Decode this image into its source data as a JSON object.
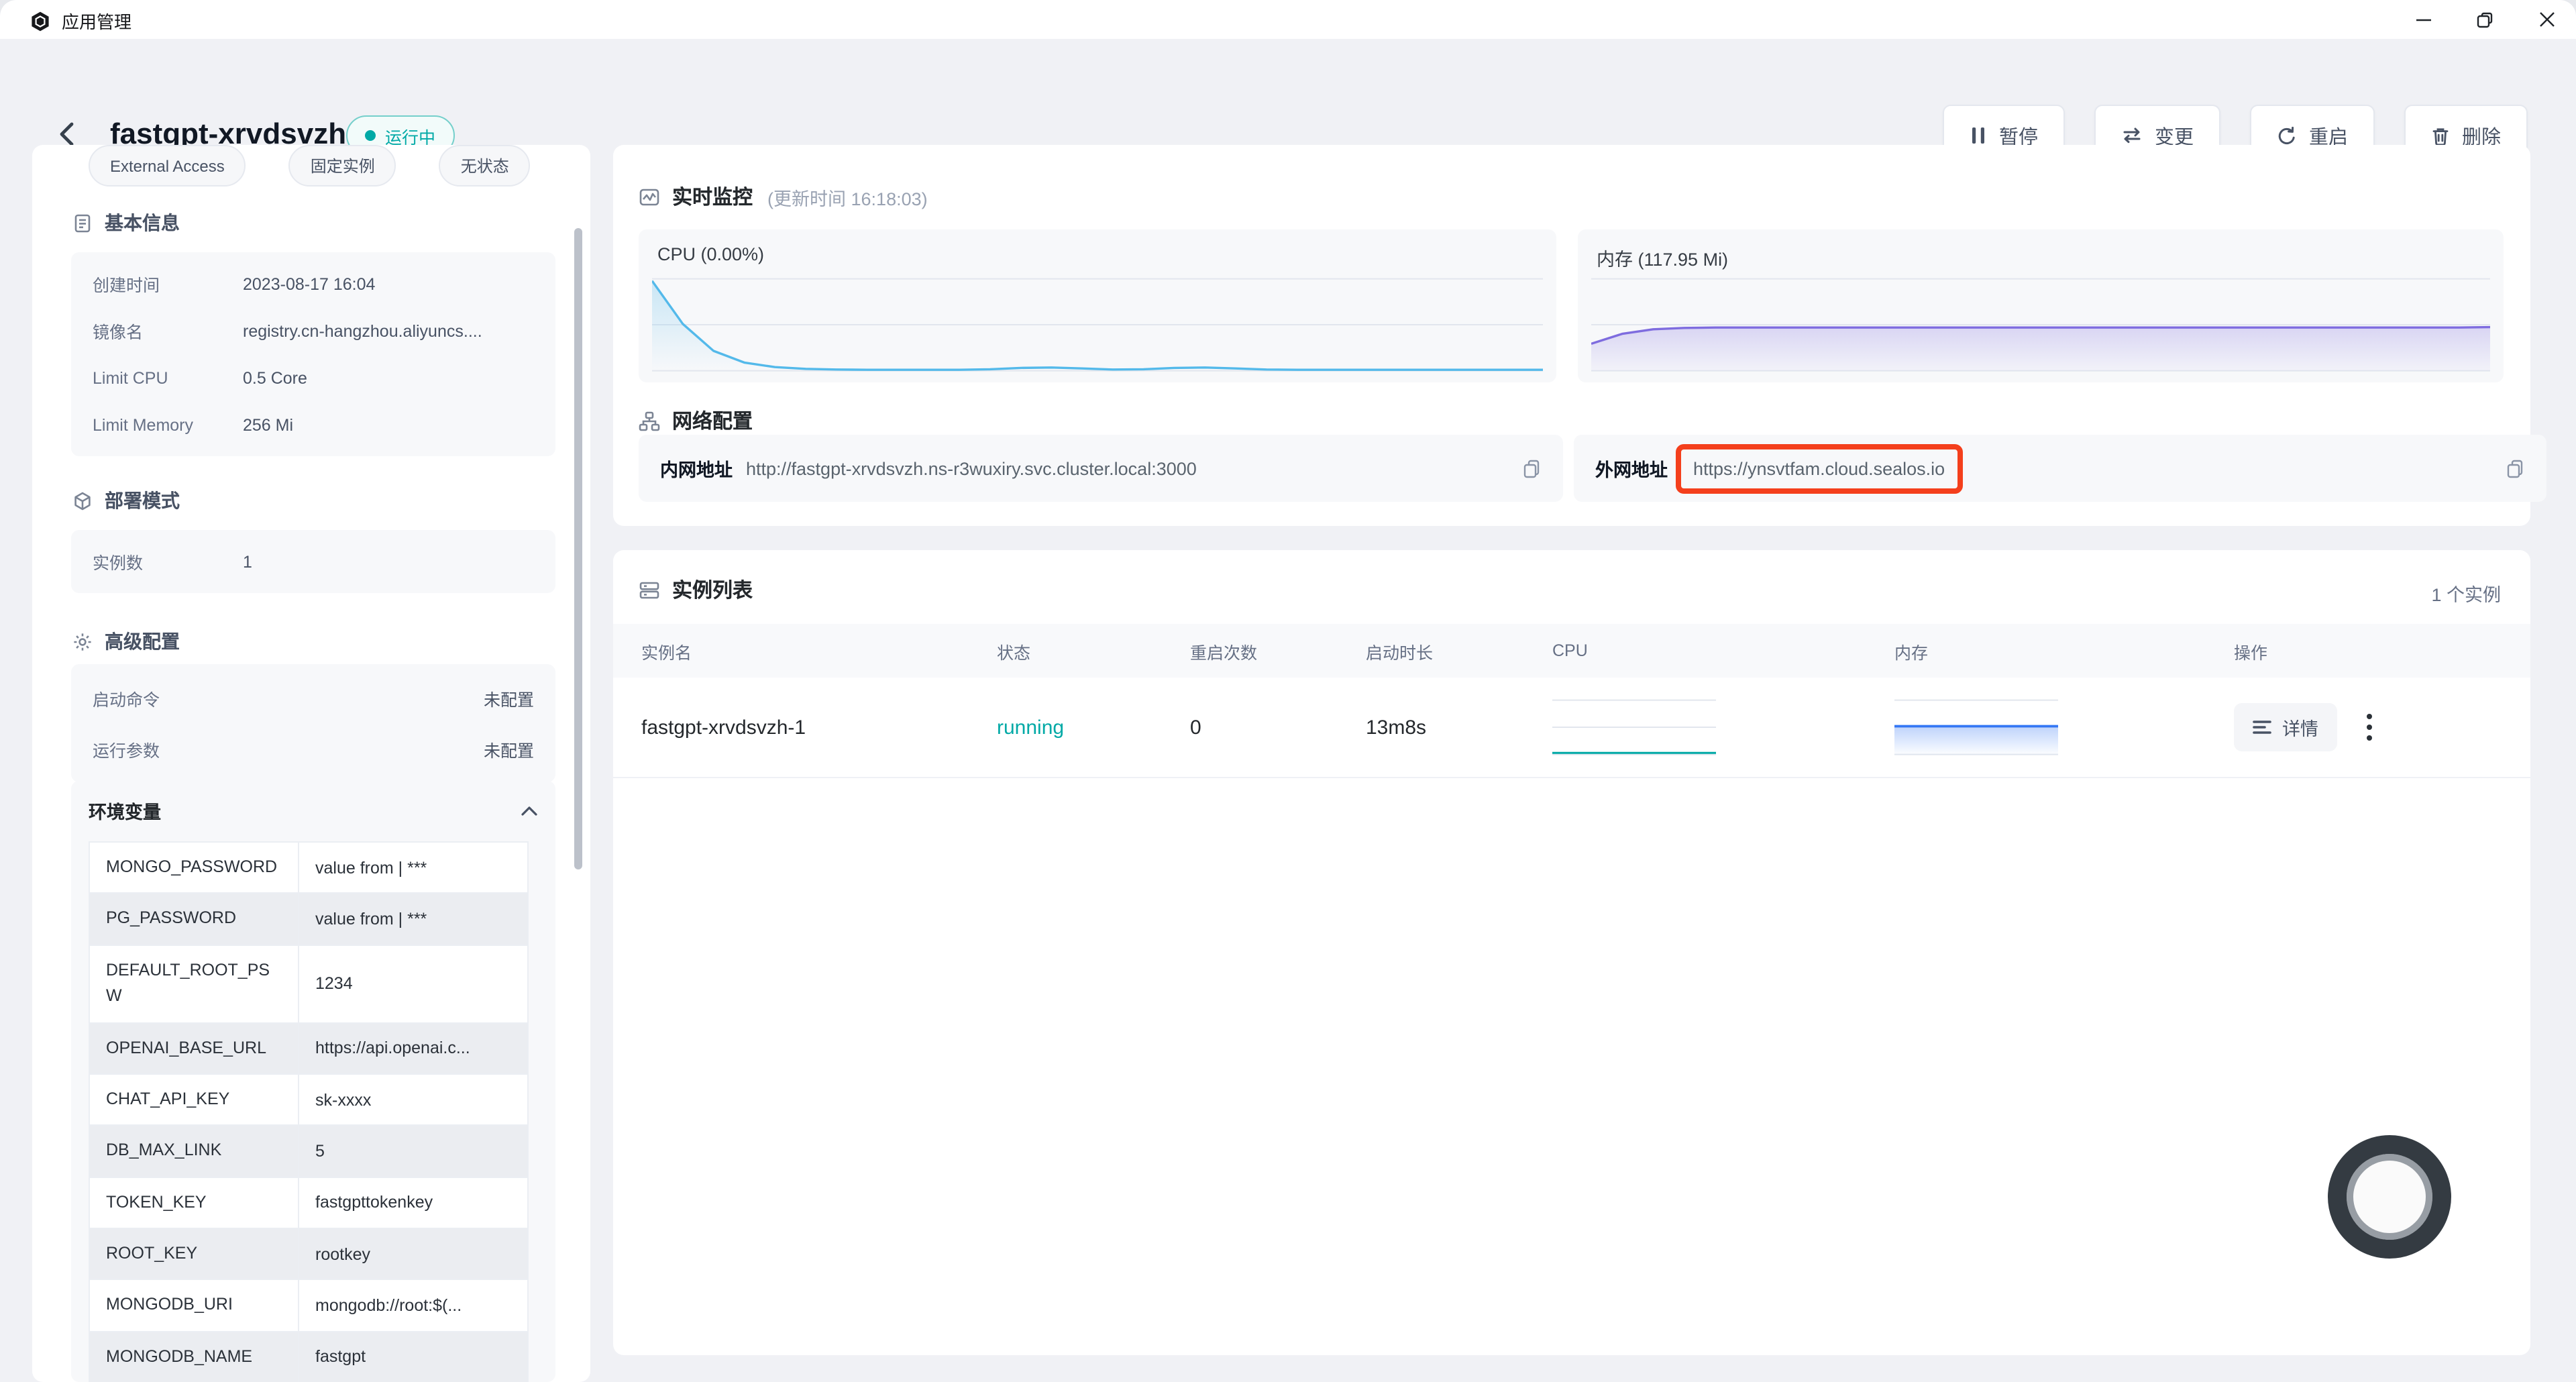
{
  "window": {
    "title": "应用管理"
  },
  "header": {
    "app_name": "fastgpt-xrvdsvzh",
    "status_label": "运行中",
    "actions": [
      {
        "label": "暂停",
        "icon": "pause-icon"
      },
      {
        "label": "变更",
        "icon": "swap-icon"
      },
      {
        "label": "重启",
        "icon": "restart-icon"
      },
      {
        "label": "删除",
        "icon": "trash-icon"
      }
    ]
  },
  "sidebar": {
    "tags": [
      {
        "label": "External Access"
      },
      {
        "label": "固定实例"
      },
      {
        "label": "无状态"
      }
    ],
    "basic_info": {
      "title": "基本信息",
      "rows": [
        {
          "label": "创建时间",
          "value": "2023-08-17 16:04"
        },
        {
          "label": "镜像名",
          "value": "registry.cn-hangzhou.aliyuncs...."
        },
        {
          "label": "Limit CPU",
          "value": "0.5 Core"
        },
        {
          "label": "Limit Memory",
          "value": "256 Mi"
        }
      ]
    },
    "deploy_mode": {
      "title": "部署模式",
      "rows": [
        {
          "label": "实例数",
          "value": "1"
        }
      ]
    },
    "advanced": {
      "title": "高级配置",
      "rows": [
        {
          "label": "启动命令",
          "value": "未配置"
        },
        {
          "label": "运行参数",
          "value": "未配置"
        }
      ]
    },
    "env": {
      "title": "环境变量",
      "rows": [
        {
          "key": "MONGO_PASSWORD",
          "value": "value from | ***"
        },
        {
          "key": "PG_PASSWORD",
          "value": "value from | ***"
        },
        {
          "key": "DEFAULT_ROOT_PSW",
          "value": "1234"
        },
        {
          "key": "OPENAI_BASE_URL",
          "value": "https://api.openai.c..."
        },
        {
          "key": "CHAT_API_KEY",
          "value": "sk-xxxx"
        },
        {
          "key": "DB_MAX_LINK",
          "value": "5"
        },
        {
          "key": "TOKEN_KEY",
          "value": "fastgpttokenkey"
        },
        {
          "key": "ROOT_KEY",
          "value": "rootkey"
        },
        {
          "key": "MONGODB_URI",
          "value": "mongodb://root:$(..."
        },
        {
          "key": "MONGODB_NAME",
          "value": "fastgpt"
        }
      ]
    }
  },
  "monitor": {
    "title": "实时监控",
    "subtitle": "(更新时间 16:18:03)"
  },
  "network": {
    "title": "网络配置",
    "internal_label": "内网地址",
    "internal_url": "http://fastgpt-xrvdsvzh.ns-r3wuxiry.svc.cluster.local:3000",
    "external_label": "外网地址",
    "external_url": "https://ynsvtfam.cloud.sealos.io"
  },
  "instances": {
    "title": "实例列表",
    "count_label": "1 个实例",
    "columns": [
      {
        "label": "实例名"
      },
      {
        "label": "状态"
      },
      {
        "label": "重启次数"
      },
      {
        "label": "启动时长"
      },
      {
        "label": "CPU"
      },
      {
        "label": "内存"
      },
      {
        "label": "操作"
      }
    ],
    "row": {
      "name": "fastgpt-xrvdsvzh-1",
      "status": "running",
      "restarts": "0",
      "uptime": "13m8s",
      "detail_label": "详情"
    }
  },
  "colors": {
    "accent_teal": "#00A9A6",
    "annotation_red": "#F43F1C",
    "cpu_line_blue": "#53B9EA",
    "mem_line_purple": "#7E6CDF",
    "spark_mem_blue": "#3477F5"
  },
  "chart_data": [
    {
      "id": "cpu_main",
      "type": "area",
      "title": "CPU (0.00%)",
      "ylim": [
        0,
        100
      ],
      "grid": true,
      "color": "#53B9EA",
      "fill_from": "rgba(83,185,234,0.28)",
      "fill_to": "rgba(83,185,234,0)",
      "values": [
        100,
        52,
        22,
        9,
        4,
        2,
        1.2,
        1,
        1,
        1,
        1,
        1.5,
        3,
        3.5,
        2.5,
        1.2,
        1.5,
        3,
        3.5,
        2.5,
        1.2,
        1,
        1,
        1,
        1,
        1,
        1,
        1,
        1,
        1
      ]
    },
    {
      "id": "mem_main",
      "type": "area",
      "title": "内存 (117.95 Mi)",
      "ylim": [
        0,
        100
      ],
      "grid": true,
      "color": "#7E6CDF",
      "fill_from": "rgba(126,108,223,0.25)",
      "fill_to": "rgba(126,108,223,0.04)",
      "values": [
        30,
        41,
        46,
        47.5,
        48,
        48,
        48,
        48,
        48,
        48,
        48,
        48,
        48,
        48,
        48,
        48,
        48,
        48,
        48,
        48,
        48,
        48,
        48,
        48,
        48,
        48,
        48,
        48,
        48,
        48.5
      ]
    },
    {
      "id": "cpu_spark",
      "type": "area",
      "title": "instance CPU sparkline",
      "ylim": [
        0,
        100
      ],
      "grid": true,
      "color": "#00A9A6",
      "fill_from": "rgba(0,169,166,0.12)",
      "fill_to": "rgba(0,169,166,0)",
      "values": [
        3,
        3,
        3,
        3,
        3,
        3,
        3,
        3,
        3,
        3
      ]
    },
    {
      "id": "mem_spark",
      "type": "area",
      "title": "instance memory sparkline",
      "ylim": [
        0,
        100
      ],
      "grid": true,
      "color": "#3477F5",
      "fill_from": "rgba(52,119,245,0.32)",
      "fill_to": "rgba(52,119,245,0.02)",
      "values": [
        54,
        54,
        54,
        54,
        54,
        54,
        54,
        54,
        54,
        54
      ]
    }
  ]
}
